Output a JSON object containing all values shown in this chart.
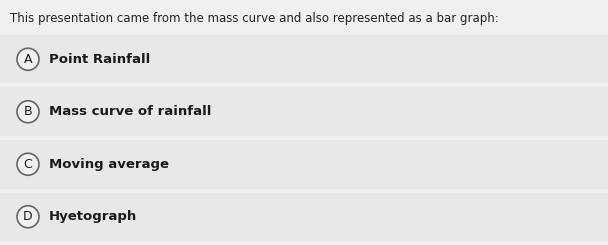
{
  "title": "This presentation came from the mass curve and also represented as a bar graph:",
  "options": [
    {
      "letter": "A",
      "text": "Point Rainfall"
    },
    {
      "letter": "B",
      "text": "Mass curve of rainfall"
    },
    {
      "letter": "C",
      "text": "Moving average"
    },
    {
      "letter": "D",
      "text": "Hyetograph"
    }
  ],
  "background_color": "#f0f0f0",
  "title_color": "#222222",
  "option_bg_color": "#e8e8e8",
  "gap_color": "#f0f0f0",
  "option_text_color": "#1a1a1a",
  "circle_edge_color": "#666666",
  "circle_face_color": "#f0f0f0",
  "title_fontsize": 8.5,
  "option_fontsize": 9.5,
  "letter_fontsize": 9.0
}
